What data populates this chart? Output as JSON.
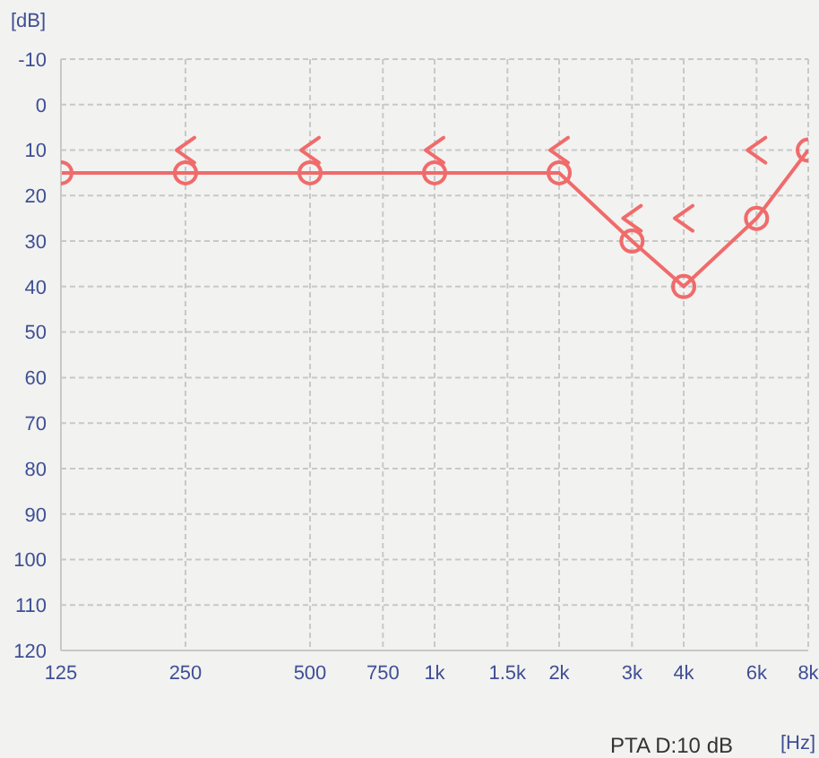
{
  "chart_data": {
    "type": "line",
    "ylabel": "[dB]",
    "xlabel": "[Hz]",
    "annotations": [
      "PTA D:10 dB"
    ],
    "log": "x",
    "xlim": [
      125,
      8000
    ],
    "ylim": [
      120,
      -10
    ],
    "xticks": [
      125,
      250,
      500,
      750,
      {
        "value": 1000,
        "label": "1k"
      },
      {
        "value": 1500,
        "label": "1.5k"
      },
      {
        "value": 2000,
        "label": "2k"
      },
      {
        "value": 3000,
        "label": "3k"
      },
      {
        "value": 4000,
        "label": "4k"
      },
      {
        "value": 6000,
        "label": "6k"
      },
      {
        "value": 8000,
        "label": "8k"
      }
    ],
    "yticks": [
      -10,
      0,
      10,
      20,
      30,
      40,
      50,
      60,
      70,
      80,
      90,
      100,
      110,
      120
    ],
    "grid": true,
    "series": [
      {
        "color": "#f06b6b",
        "marker": "circle",
        "x": [
          125,
          250,
          500,
          1000,
          2000,
          3000,
          4000,
          6000,
          8000
        ],
        "values": [
          15,
          15,
          15,
          15,
          15,
          30,
          40,
          25,
          10
        ]
      },
      {
        "type": "scatter",
        "color": "#f06b6b",
        "x": [
          250,
          500,
          1000,
          2000,
          3000,
          4000,
          6000
        ],
        "values": [
          10,
          10,
          10,
          10,
          25,
          25,
          10
        ]
      }
    ]
  }
}
